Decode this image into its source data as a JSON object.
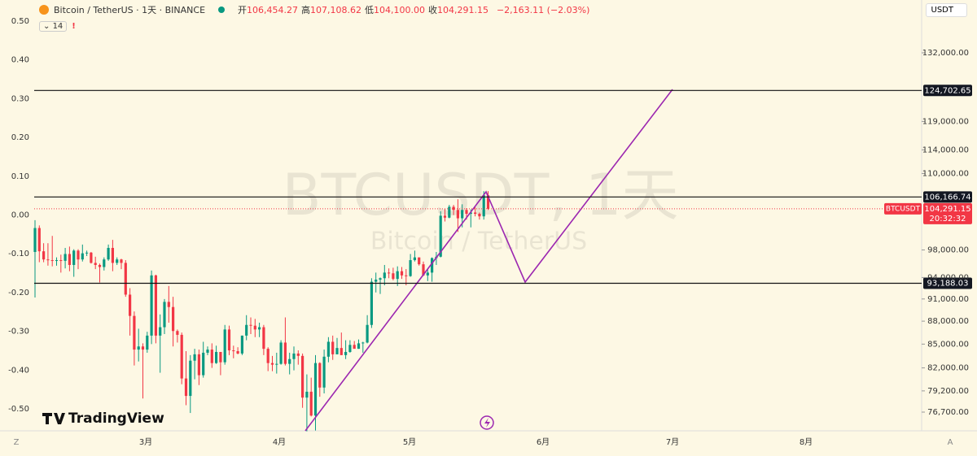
{
  "header": {
    "symbol": "Bitcoin / TetherUS · 1天 · BINANCE",
    "ohlc": [
      {
        "label": "开",
        "value": "106,454.27"
      },
      {
        "label": "高",
        "value": "107,108.62"
      },
      {
        "label": "低",
        "value": "104,100.00"
      },
      {
        "label": "收",
        "value": "104,291.15"
      }
    ],
    "change": "−2,163.11 (−2.03%)",
    "indicator": "14"
  },
  "currency": "USDT",
  "watermark": {
    "title": "BTCUSDT, 1天",
    "subtitle": "Bitcoin / TetherUS"
  },
  "logo": "TradingView",
  "left_axis": [
    {
      "value": 0.5,
      "label": "0.50"
    },
    {
      "value": 0.4,
      "label": "0.40"
    },
    {
      "value": 0.3,
      "label": "0.30"
    },
    {
      "value": 0.2,
      "label": "0.20"
    },
    {
      "value": 0.1,
      "label": "0.10"
    },
    {
      "value": 0,
      "label": "0.00"
    },
    {
      "value": -0.1,
      "label": "-0.10"
    },
    {
      "value": -0.2,
      "label": "-0.20"
    },
    {
      "value": -0.3,
      "label": "-0.30"
    },
    {
      "value": -0.4,
      "label": "-0.40"
    },
    {
      "value": -0.5,
      "label": "-0.50"
    }
  ],
  "price_axis": [
    {
      "value": 132000,
      "label": "132,000.00"
    },
    {
      "value": 119000,
      "label": "119,000.00"
    },
    {
      "value": 114000,
      "label": "114,000.00"
    },
    {
      "value": 110000,
      "label": "110,000.00"
    },
    {
      "value": 98000,
      "label": "98,000.00"
    },
    {
      "value": 94000,
      "label": "94,000.00"
    },
    {
      "value": 91000,
      "label": "91,000.00"
    },
    {
      "value": 88000,
      "label": "88,000.00"
    },
    {
      "value": 85000,
      "label": "85,000.00"
    },
    {
      "value": 82000,
      "label": "82,000.00"
    },
    {
      "value": 79200,
      "label": "79,200.00"
    },
    {
      "value": 76700,
      "label": "76,700.00"
    }
  ],
  "levels": [
    {
      "value": 124702.65,
      "label": "124,702.65"
    },
    {
      "value": 106166.74,
      "label": "106,166.74"
    },
    {
      "value": 93188.03,
      "label": "93,188.03"
    }
  ],
  "last_price": {
    "symbol": "BTCUSDT",
    "value": 104291.15,
    "label": "104,291.15",
    "countdown": "20:32:32"
  },
  "months": [
    "3月",
    "4月",
    "5月",
    "6月",
    "7月",
    "8月"
  ],
  "corner_left": "Z",
  "corner_right": "A",
  "candles": [
    [
      97700,
      102500,
      91200,
      101300
    ],
    [
      101300,
      101700,
      96200,
      97800
    ],
    [
      97800,
      99000,
      96200,
      96600
    ],
    [
      96600,
      99000,
      95700,
      96500
    ],
    [
      96500,
      100100,
      95600,
      96400
    ],
    [
      96400,
      96900,
      95700,
      96500
    ],
    [
      96500,
      97300,
      94700,
      96400
    ],
    [
      96400,
      98300,
      95300,
      97400
    ],
    [
      97400,
      98500,
      94900,
      95800
    ],
    [
      95800,
      98100,
      94100,
      97900
    ],
    [
      97900,
      98100,
      95200,
      96600
    ],
    [
      96600,
      98800,
      96300,
      97500
    ],
    [
      97500,
      97900,
      97100,
      97600
    ],
    [
      97600,
      97700,
      96000,
      96100
    ],
    [
      96100,
      97000,
      95200,
      95800
    ],
    [
      95800,
      96000,
      93300,
      95500
    ],
    [
      95500,
      96900,
      95000,
      96600
    ],
    [
      96600,
      98800,
      96400,
      98300
    ],
    [
      98300,
      99500,
      94900,
      96100
    ],
    [
      96100,
      96900,
      95800,
      96600
    ],
    [
      96600,
      96700,
      95200,
      96100
    ],
    [
      96100,
      96500,
      91300,
      91600
    ],
    [
      91600,
      92500,
      86100,
      88700
    ],
    [
      88700,
      89300,
      82300,
      84300
    ],
    [
      84300,
      87000,
      82800,
      84700
    ],
    [
      84700,
      85100,
      78300,
      84300
    ],
    [
      84300,
      86600,
      83900,
      86100
    ],
    [
      86100,
      95000,
      85000,
      94300
    ],
    [
      94300,
      94400,
      85100,
      86100
    ],
    [
      86100,
      88900,
      81400,
      87200
    ],
    [
      87200,
      91000,
      86300,
      90600
    ],
    [
      90600,
      92800,
      87800,
      89900
    ],
    [
      89900,
      91300,
      84700,
      86700
    ],
    [
      86700,
      86900,
      85200,
      86200
    ],
    [
      86200,
      86500,
      80000,
      80700
    ],
    [
      80700,
      84100,
      77500,
      78600
    ],
    [
      78600,
      83600,
      76600,
      82900
    ],
    [
      82900,
      84400,
      80600,
      83700
    ],
    [
      83700,
      84300,
      79900,
      81100
    ],
    [
      81100,
      85300,
      80800,
      83900
    ],
    [
      83900,
      84700,
      83600,
      84300
    ],
    [
      84300,
      85100,
      82000,
      82600
    ],
    [
      82600,
      84800,
      82500,
      84000
    ],
    [
      84000,
      84000,
      81100,
      82700
    ],
    [
      82700,
      87500,
      82400,
      86900
    ],
    [
      86900,
      87400,
      83600,
      84200
    ],
    [
      84200,
      84800,
      83200,
      84100
    ],
    [
      84100,
      84600,
      83700,
      83800
    ],
    [
      83800,
      86100,
      83600,
      86100
    ],
    [
      86100,
      88800,
      85500,
      87500
    ],
    [
      87500,
      88500,
      86300,
      87400
    ],
    [
      87400,
      88300,
      85900,
      86900
    ],
    [
      86900,
      87800,
      85900,
      87200
    ],
    [
      87200,
      87500,
      83600,
      84400
    ],
    [
      84400,
      84600,
      81600,
      82600
    ],
    [
      82600,
      83500,
      81600,
      82400
    ],
    [
      82400,
      83900,
      81300,
      82500
    ],
    [
      82500,
      85500,
      82400,
      85200
    ],
    [
      85200,
      88500,
      82300,
      82500
    ],
    [
      82500,
      83900,
      81200,
      83100
    ],
    [
      83100,
      84700,
      81700,
      83800
    ],
    [
      83800,
      84200,
      82400,
      83500
    ],
    [
      83500,
      83800,
      77200,
      78400
    ],
    [
      78400,
      81200,
      74500,
      79100
    ],
    [
      79100,
      80800,
      76200,
      76300
    ],
    [
      76300,
      83600,
      74600,
      82600
    ],
    [
      82600,
      82700,
      78500,
      79600
    ],
    [
      79600,
      84300,
      78900,
      83400
    ],
    [
      83400,
      85900,
      82700,
      85300
    ],
    [
      85300,
      86100,
      83000,
      83700
    ],
    [
      83700,
      85800,
      83700,
      84500
    ],
    [
      84500,
      86500,
      83600,
      83600
    ],
    [
      83600,
      85500,
      83100,
      84000
    ],
    [
      84000,
      85500,
      83900,
      84900
    ],
    [
      84900,
      85400,
      84600,
      84400
    ],
    [
      84400,
      85600,
      84400,
      85100
    ],
    [
      85100,
      85300,
      83900,
      85200
    ],
    [
      85200,
      88800,
      85100,
      87500
    ],
    [
      87500,
      93900,
      87100,
      93400
    ],
    [
      93400,
      94700,
      91900,
      93700
    ],
    [
      93700,
      94000,
      91700,
      93900
    ],
    [
      93900,
      95800,
      92900,
      94700
    ],
    [
      94700,
      95300,
      93900,
      94600
    ],
    [
      94600,
      95400,
      93600,
      93800
    ],
    [
      93800,
      95600,
      92800,
      94900
    ],
    [
      94900,
      95500,
      93800,
      94300
    ],
    [
      94300,
      95200,
      92900,
      94200
    ],
    [
      94200,
      97400,
      94100,
      96500
    ],
    [
      96500,
      97900,
      96300,
      96900
    ],
    [
      96900,
      96900,
      95700,
      95900
    ],
    [
      95900,
      96300,
      94200,
      94300
    ],
    [
      94300,
      95200,
      93500,
      94700
    ],
    [
      94700,
      96900,
      93400,
      96800
    ],
    [
      96800,
      97700,
      95800,
      97000
    ],
    [
      97000,
      103900,
      96900,
      103200
    ],
    [
      103200,
      104300,
      102300,
      102900
    ],
    [
      102900,
      104900,
      102800,
      104600
    ],
    [
      104600,
      104900,
      103300,
      104100
    ],
    [
      104100,
      105800,
      100700,
      102800
    ],
    [
      102800,
      105000,
      101400,
      104100
    ],
    [
      104100,
      104400,
      102600,
      103500
    ],
    [
      103500,
      104200,
      101400,
      103700
    ],
    [
      103700,
      104600,
      103100,
      103500
    ],
    [
      103500,
      103700,
      102600,
      103100
    ],
    [
      103100,
      107100,
      102600,
      106450
    ],
    [
      106454.27,
      107108.62,
      104100,
      104291.15
    ]
  ]
}
